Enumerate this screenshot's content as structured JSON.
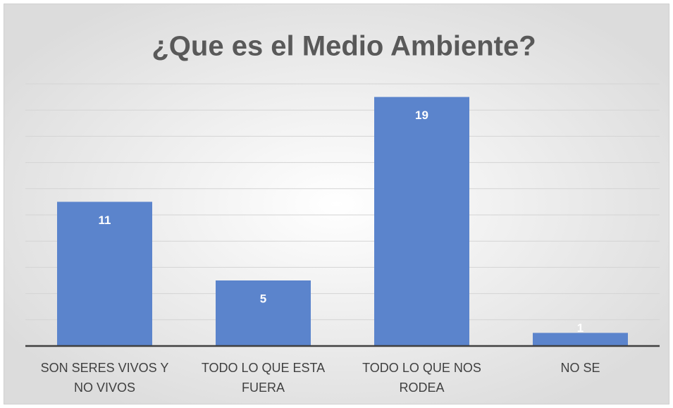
{
  "chart_data": {
    "type": "bar",
    "title": "¿Que es el Medio Ambiente?",
    "categories": [
      "SON SERES VIVOS Y NO VIVOS",
      "TODO LO QUE ESTA FUERA",
      "TODO LO QUE NOS RODEA",
      "NO SE"
    ],
    "values": [
      11,
      5,
      19,
      1
    ],
    "color": "#5b84cc",
    "ylim": [
      0,
      20
    ],
    "yticks": [
      0,
      2,
      4,
      6,
      8,
      10,
      12,
      14,
      16,
      18,
      20
    ],
    "grid": true
  }
}
